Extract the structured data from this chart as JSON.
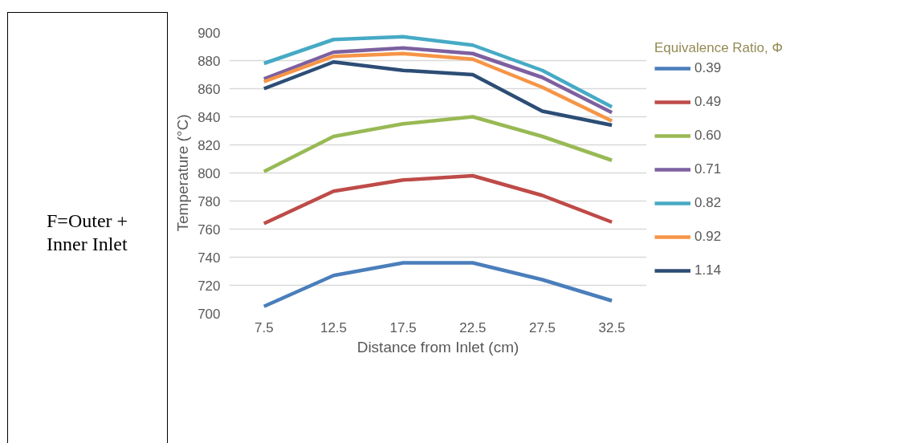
{
  "chart_data": {
    "type": "line",
    "xlabel": "Distance from Inlet (cm)",
    "ylabel": "Temperature (°C)",
    "legend_title": "Equivalence Ratio, Φ",
    "annotations": [
      "F=Outer + Inner Inlet"
    ],
    "categories": [
      "7.5",
      "12.5",
      "17.5",
      "22.5",
      "27.5",
      "32.5"
    ],
    "ylim": [
      700,
      900
    ],
    "yticks": [
      700,
      720,
      740,
      760,
      780,
      800,
      820,
      840,
      860,
      880,
      900
    ],
    "grid": "y",
    "legend": "right",
    "marker": "none",
    "line_style": "solid",
    "series": [
      {
        "name": "0.39",
        "color": "#4a7ebb",
        "values": [
          705,
          727,
          736,
          736,
          724,
          709
        ]
      },
      {
        "name": "0.49",
        "color": "#be4b48",
        "values": [
          764,
          787,
          795,
          798,
          784,
          765
        ]
      },
      {
        "name": "0.60",
        "color": "#98b954",
        "values": [
          801,
          826,
          835,
          840,
          826,
          809
        ]
      },
      {
        "name": "0.71",
        "color": "#7d60a0",
        "values": [
          867,
          886,
          889,
          885,
          868,
          843
        ]
      },
      {
        "name": "0.82",
        "color": "#46aac5",
        "values": [
          878,
          895,
          897,
          891,
          873,
          847
        ]
      },
      {
        "name": "0.92",
        "color": "#f69546",
        "values": [
          865,
          883,
          885,
          881,
          861,
          837
        ]
      },
      {
        "name": "1.14",
        "color": "#2c4d75",
        "values": [
          860,
          879,
          873,
          870,
          844,
          834
        ]
      }
    ]
  }
}
